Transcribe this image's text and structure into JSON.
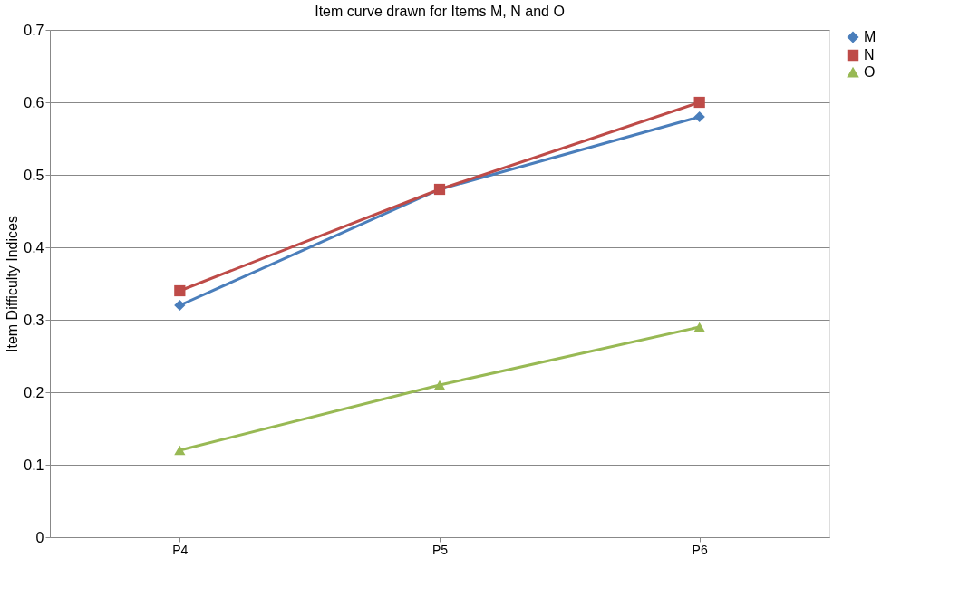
{
  "chart_data": {
    "type": "line",
    "title": "Item curve drawn for Items M, N and O",
    "ylabel": "Item Difficulty Indices",
    "categories": [
      "P4",
      "P5",
      "P6"
    ],
    "series": [
      {
        "name": "M",
        "color": "#4a7ebb",
        "marker": "diamond",
        "values": [
          0.32,
          0.48,
          0.58
        ]
      },
      {
        "name": "N",
        "color": "#be4b48",
        "marker": "square",
        "values": [
          0.34,
          0.48,
          0.6
        ]
      },
      {
        "name": "O",
        "color": "#98b954",
        "marker": "triangle",
        "values": [
          0.12,
          0.21,
          0.29
        ]
      }
    ],
    "ylim": [
      0,
      0.7
    ],
    "yticks": [
      0,
      0.1,
      0.2,
      0.3,
      0.4,
      0.5,
      0.6,
      0.7
    ],
    "grid": "y",
    "legend": "right",
    "line_style": "solid"
  }
}
